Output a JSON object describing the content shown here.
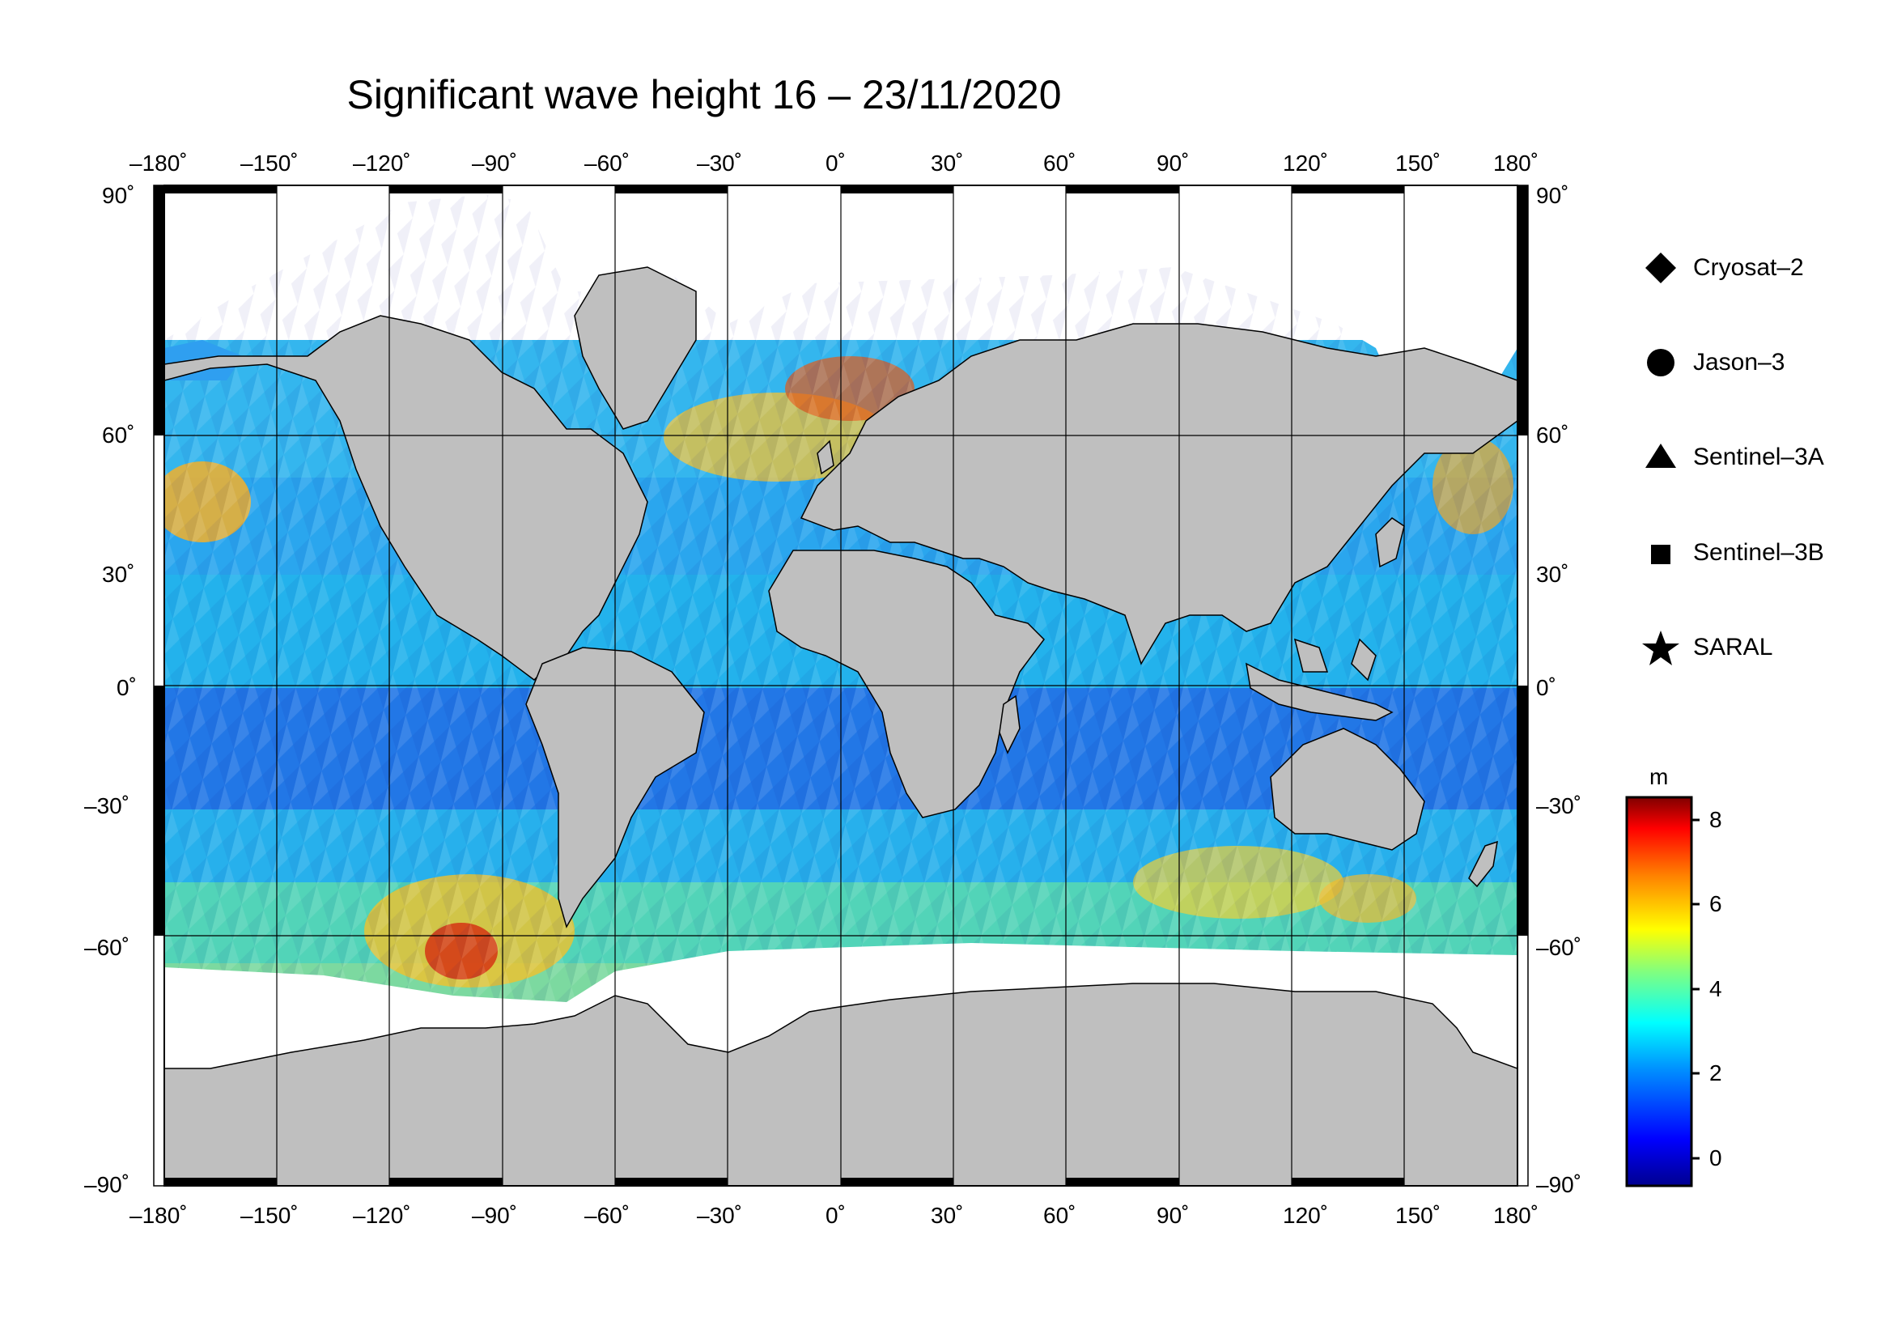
{
  "title": "Significant wave height 16 – 23/11/2020",
  "colors": {
    "land": "#bfbfbf",
    "ocean_low": "#1f4fe0",
    "ocean_mid": "#29c4ea",
    "ocean_high": "#f0b030",
    "ocean_peak": "#c81e10",
    "ice": "#ffffff"
  },
  "axes": {
    "lon_ticks": [
      -180,
      -150,
      -120,
      -90,
      -60,
      -30,
      0,
      30,
      60,
      90,
      120,
      150,
      180
    ],
    "lon_labels": [
      "–180˚",
      "–150˚",
      "–120˚",
      "–90˚",
      "–60˚",
      "–30˚",
      "0˚",
      "30˚",
      "60˚",
      "90˚",
      "120˚",
      "150˚",
      "180˚"
    ],
    "lat_ticks": [
      90,
      60,
      30,
      0,
      -30,
      -60,
      -90
    ],
    "lat_labels": [
      "90˚",
      "60˚",
      "30˚",
      "0˚",
      "–30˚",
      "–60˚",
      "–90˚"
    ],
    "lon_range": [
      -180,
      180
    ],
    "lat_range": [
      -90,
      90
    ],
    "grid": true
  },
  "legend": {
    "items": [
      {
        "label": "Cryosat–2",
        "icon": "diamond-icon"
      },
      {
        "label": "Jason–3",
        "icon": "circle-icon"
      },
      {
        "label": "Sentinel–3A",
        "icon": "triangle-icon"
      },
      {
        "label": "Sentinel–3B",
        "icon": "square-icon"
      },
      {
        "label": "SARAL",
        "icon": "star-icon"
      }
    ]
  },
  "colorbar": {
    "unit": "m",
    "range": [
      -0.6,
      8.6
    ],
    "tick_values": [
      8,
      6,
      4,
      2,
      0
    ],
    "tick_labels": [
      "8",
      "6",
      "4",
      "2",
      "0"
    ]
  }
}
